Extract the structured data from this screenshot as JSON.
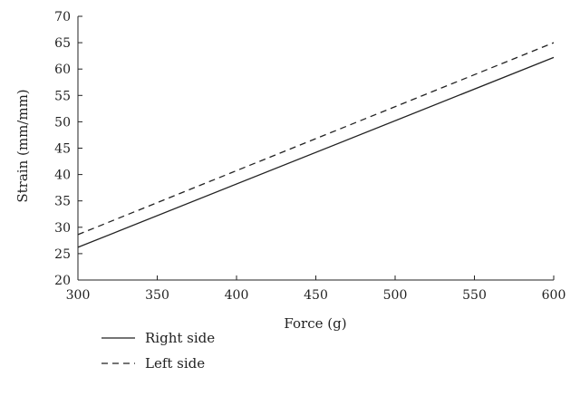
{
  "chart_data": {
    "type": "line",
    "title": "",
    "xlabel": "Force (g)",
    "ylabel": "Strain (mm/mm)",
    "xlim": [
      300,
      600
    ],
    "ylim": [
      20,
      70
    ],
    "xticks": [
      300,
      350,
      400,
      450,
      500,
      550,
      600
    ],
    "yticks": [
      20,
      25,
      30,
      35,
      40,
      45,
      50,
      55,
      60,
      65,
      70
    ],
    "grid": false,
    "legend_position": "bottom-left",
    "series": [
      {
        "name": "Right side",
        "style": "solid",
        "color": "#222222",
        "x": [
          300,
          600
        ],
        "y": [
          26.2,
          62.2
        ]
      },
      {
        "name": "Left side",
        "style": "dashed",
        "color": "#222222",
        "x": [
          300,
          600
        ],
        "y": [
          28.6,
          65.0
        ]
      }
    ]
  }
}
